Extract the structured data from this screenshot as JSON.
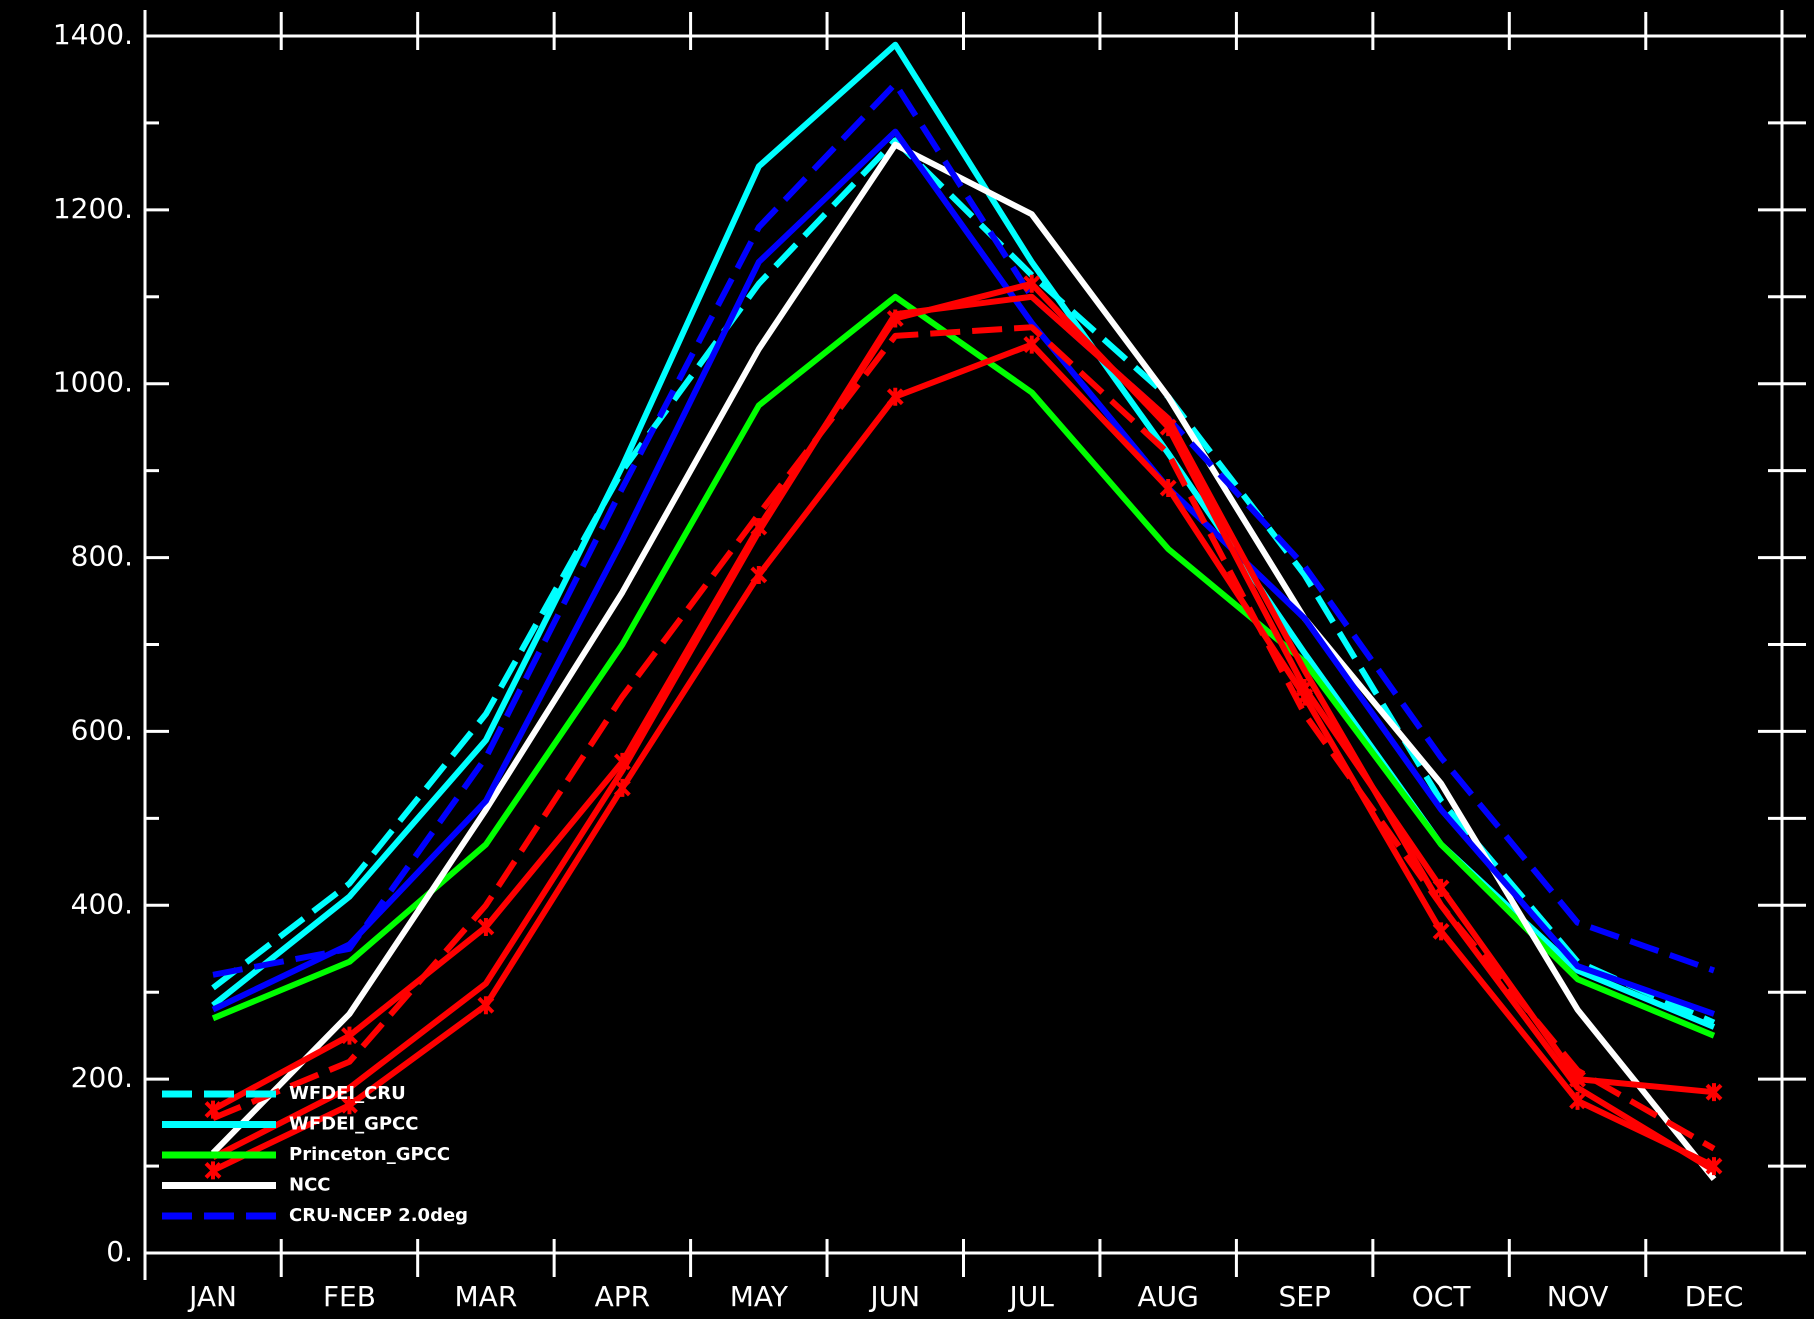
{
  "chart_data": {
    "type": "line",
    "categories": [
      "JAN",
      "FEB",
      "MAR",
      "APR",
      "MAY",
      "JUN",
      "JUL",
      "AUG",
      "SEP",
      "OCT",
      "NOV",
      "DEC"
    ],
    "ylim": [
      0,
      1400
    ],
    "yticks": [
      {
        "value": 0,
        "label": "0."
      },
      {
        "value": 200,
        "label": "200."
      },
      {
        "value": 400,
        "label": "400."
      },
      {
        "value": 600,
        "label": "600."
      },
      {
        "value": 800,
        "label": "800."
      },
      {
        "value": 1000,
        "label": "1000."
      },
      {
        "value": 1200,
        "label": "1200."
      },
      {
        "value": 1400,
        "label": "1400."
      }
    ],
    "yticks_minor": [
      100,
      300,
      500,
      700,
      900,
      1100,
      1300
    ],
    "legend": "lower left",
    "series": [
      {
        "name": "WFDEI_CRU",
        "color": "#00ffff",
        "dash": "dashed",
        "values": [
          305,
          425,
          620,
          900,
          1115,
          1280,
          1125,
          985,
          780,
          520,
          335,
          265
        ]
      },
      {
        "name": "WFDEI_GPCC",
        "color": "#00ffff",
        "dash": "solid",
        "values": [
          285,
          410,
          590,
          905,
          1250,
          1390,
          1140,
          920,
          690,
          470,
          325,
          260
        ]
      },
      {
        "name": "Princeton_GPCC",
        "color": "#00ff00",
        "dash": "solid",
        "values": [
          270,
          335,
          470,
          700,
          975,
          1100,
          990,
          810,
          680,
          470,
          315,
          250
        ]
      },
      {
        "name": "NCC",
        "color": "#ffffff",
        "dash": "solid",
        "values": [
          115,
          275,
          510,
          760,
          1040,
          1275,
          1195,
          985,
          730,
          540,
          280,
          85
        ]
      },
      {
        "name": "CRU-NCEP 2.0deg",
        "color": "#0000ff",
        "dash": "dashed",
        "values": [
          320,
          350,
          570,
          880,
          1180,
          1345,
          1100,
          960,
          790,
          570,
          380,
          325
        ]
      },
      {
        "color": "#0000ff",
        "dash": "solid",
        "values": [
          280,
          355,
          520,
          820,
          1140,
          1290,
          1070,
          880,
          730,
          510,
          330,
          275
        ]
      },
      {
        "color": "#ff0000",
        "dash": "solid",
        "marker": true,
        "values": [
          165,
          250,
          375,
          565,
          835,
          1075,
          1115,
          950,
          650,
          420,
          200,
          185
        ]
      },
      {
        "color": "#ff0000",
        "dash": "dashed",
        "values": [
          155,
          220,
          400,
          640,
          850,
          1055,
          1065,
          920,
          620,
          400,
          210,
          120
        ]
      },
      {
        "color": "#ff0000",
        "dash": "solid",
        "marker": true,
        "values": [
          95,
          170,
          285,
          535,
          780,
          985,
          1045,
          880,
          640,
          370,
          175,
          100
        ]
      },
      {
        "color": "#ff0000",
        "dash": "solid",
        "values": [
          110,
          190,
          310,
          555,
          830,
          1080,
          1100,
          960,
          670,
          400,
          190,
          95
        ]
      }
    ]
  }
}
